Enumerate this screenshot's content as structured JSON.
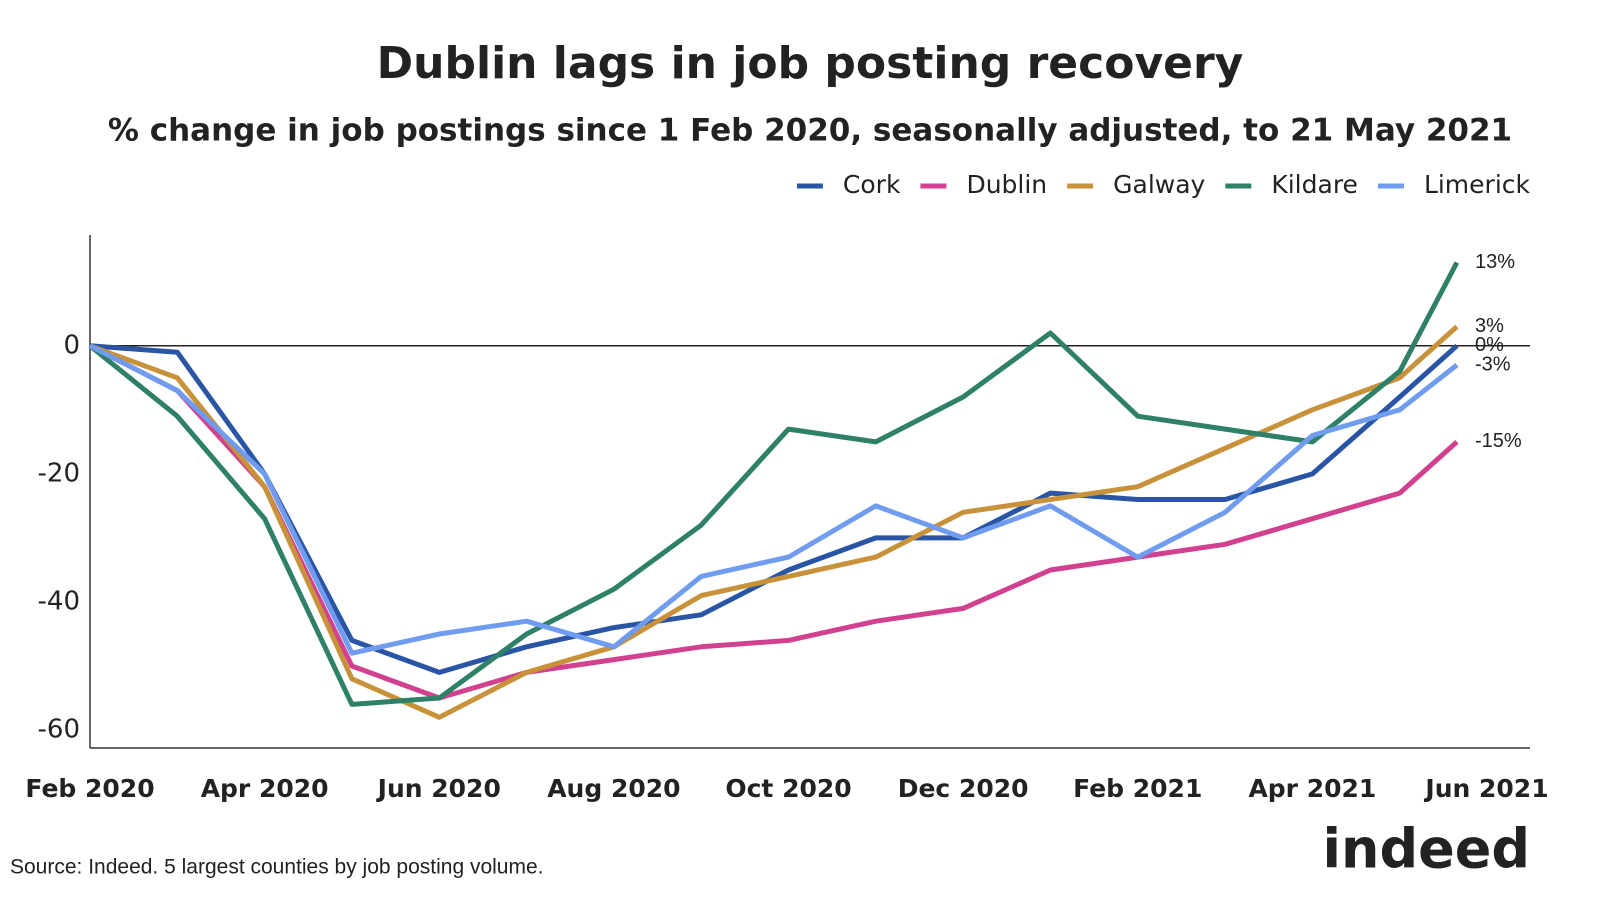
{
  "chart_data": {
    "type": "line",
    "title": "Dublin lags in job posting recovery",
    "subtitle": "% change in job postings since 1 Feb 2020, seasonally adjusted, to 21 May 2021",
    "source": "Source: Indeed. 5 largest counties by job posting volume.",
    "logo": "indeed",
    "x": [
      "2020-02",
      "2020-03",
      "2020-04",
      "2020-05",
      "2020-06",
      "2020-07",
      "2020-08",
      "2020-09",
      "2020-10",
      "2020-11",
      "2020-12",
      "2021-01",
      "2021-02",
      "2021-03",
      "2021-04",
      "2021-05",
      "2021-05-21"
    ],
    "xticks": [
      {
        "value": "2020-02",
        "label": "Feb 2020"
      },
      {
        "value": "2020-04",
        "label": "Apr 2020"
      },
      {
        "value": "2020-06",
        "label": "Jun 2020"
      },
      {
        "value": "2020-08",
        "label": "Aug 2020"
      },
      {
        "value": "2020-10",
        "label": "Oct 2020"
      },
      {
        "value": "2020-12",
        "label": "Dec 2020"
      },
      {
        "value": "2021-02",
        "label": "Feb 2021"
      },
      {
        "value": "2021-04",
        "label": "Apr 2021"
      },
      {
        "value": "2021-06",
        "label": "Jun 2021"
      }
    ],
    "ylim": [
      -62.8,
      17.3
    ],
    "yticks": [
      0,
      -20,
      -40,
      -60
    ],
    "legend": "top-right",
    "series": [
      {
        "name": "Cork",
        "color": "#2a55a4",
        "values": [
          0,
          -1,
          -20,
          -46,
          -51,
          -47,
          -44,
          -42,
          -35,
          -30,
          -30,
          -23,
          -24,
          -24,
          -20,
          -8,
          0
        ],
        "end_label": "0%"
      },
      {
        "name": "Dublin",
        "color": "#d2418f",
        "values": [
          0,
          -7,
          -22,
          -50,
          -55,
          -51,
          -49,
          -47,
          -46,
          -43,
          -41,
          -35,
          -33,
          -31,
          -27,
          -23,
          -15
        ],
        "end_label": "-15%"
      },
      {
        "name": "Galway",
        "color": "#c8923a",
        "values": [
          0,
          -5,
          -22,
          -52,
          -58,
          -51,
          -47,
          -39,
          -36,
          -33,
          -26,
          -24,
          -22,
          -16,
          -10,
          -5,
          3
        ],
        "end_label": "3%"
      },
      {
        "name": "Kildare",
        "color": "#2e8068",
        "values": [
          0,
          -11,
          -27,
          -56,
          -55,
          -45,
          -38,
          -28,
          -13,
          -15,
          -8,
          2,
          -11,
          -13,
          -15,
          -4,
          13
        ],
        "end_label": "13%"
      },
      {
        "name": "Limerick",
        "color": "#6f9cef",
        "values": [
          0,
          -7,
          -20,
          -48,
          -45,
          -43,
          -47,
          -36,
          -33,
          -25,
          -30,
          -25,
          -33,
          -26,
          -14,
          -10,
          -3
        ],
        "end_label": "-3%"
      }
    ]
  }
}
